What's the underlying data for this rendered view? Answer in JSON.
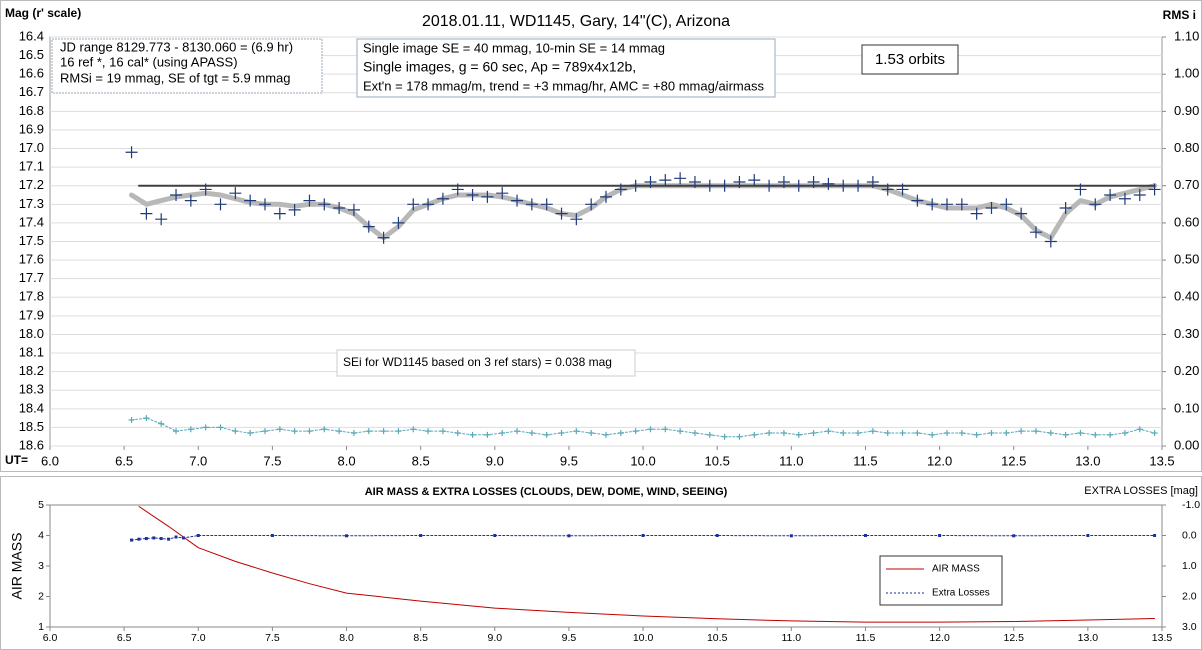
{
  "chart_data": [
    {
      "type": "scatter",
      "title": "2018.01.11,  WD1145, Gary, 14\"(C), Arizona",
      "ylabel": "Mag (r' scale)",
      "y2label": "RMS i",
      "xlabel": "UT=",
      "xlim": [
        6.0,
        13.5
      ],
      "xticks": [
        {
          "value": 6,
          "label": "6.0"
        },
        6.5,
        {
          "value": 7,
          "label": "7.0"
        },
        7.5,
        {
          "value": 8,
          "label": "8.0"
        },
        8.5,
        {
          "value": 9,
          "label": "9.0"
        },
        9.5,
        {
          "value": 10,
          "label": "10.0"
        },
        10.5,
        {
          "value": 11,
          "label": "11.0"
        },
        11.5,
        {
          "value": 12,
          "label": "12.0"
        },
        12.5,
        {
          "value": 13,
          "label": "13.0"
        },
        13.5
      ],
      "ylim": [
        18.6,
        16.4
      ],
      "yticks": [
        16.4,
        16.5,
        16.6,
        16.7,
        16.8,
        16.9,
        {
          "value": 17,
          "label": "17.0"
        },
        17.1,
        17.2,
        17.3,
        17.4,
        17.5,
        17.6,
        17.7,
        17.8,
        17.9,
        {
          "value": 18,
          "label": "18.0"
        },
        18.1,
        18.2,
        18.3,
        18.4,
        18.5,
        18.6
      ],
      "y2lim": [
        0,
        1.1
      ],
      "y2ticks": [
        {
          "value": 0,
          "label": "0.00"
        },
        {
          "value": 0.1,
          "label": "0.10"
        },
        {
          "value": 0.2,
          "label": "0.20"
        },
        {
          "value": 0.3,
          "label": "0.30"
        },
        {
          "value": 0.4,
          "label": "0.40"
        },
        {
          "value": 0.5,
          "label": "0.50"
        },
        {
          "value": 0.6,
          "label": "0.60"
        },
        {
          "value": 0.7,
          "label": "0.70"
        },
        {
          "value": 0.8,
          "label": "0.80"
        },
        {
          "value": 0.9,
          "label": "0.90"
        },
        {
          "value": 1,
          "label": "1.00"
        },
        {
          "value": 1.1,
          "label": "1.10"
        }
      ],
      "grid": true,
      "x": [
        6.55,
        6.65,
        6.75,
        6.85,
        6.95,
        7.05,
        7.15,
        7.25,
        7.35,
        7.45,
        7.55,
        7.65,
        7.75,
        7.85,
        7.95,
        8.05,
        8.15,
        8.25,
        8.35,
        8.45,
        8.55,
        8.65,
        8.75,
        8.85,
        8.95,
        9.05,
        9.15,
        9.25,
        9.35,
        9.45,
        9.55,
        9.65,
        9.75,
        9.85,
        9.95,
        10.05,
        10.15,
        10.25,
        10.35,
        10.45,
        10.55,
        10.65,
        10.75,
        10.85,
        10.95,
        11.05,
        11.15,
        11.25,
        11.35,
        11.45,
        11.55,
        11.65,
        11.75,
        11.85,
        11.95,
        12.05,
        12.15,
        12.25,
        12.35,
        12.45,
        12.55,
        12.65,
        12.75,
        12.85,
        12.95,
        13.05,
        13.15,
        13.25,
        13.35,
        13.45
      ],
      "series": [
        {
          "style": "line",
          "color": "#b8b8b8",
          "line_width": 5,
          "values": [
            17.25,
            17.3,
            17.28,
            17.26,
            17.25,
            17.24,
            17.25,
            17.27,
            17.29,
            17.3,
            17.3,
            17.31,
            17.3,
            17.3,
            17.32,
            17.35,
            17.42,
            17.48,
            17.42,
            17.33,
            17.3,
            17.27,
            17.25,
            17.25,
            17.25,
            17.26,
            17.28,
            17.3,
            17.32,
            17.35,
            17.36,
            17.32,
            17.26,
            17.22,
            17.2,
            17.2,
            17.2,
            17.2,
            17.2,
            17.2,
            17.2,
            17.2,
            17.2,
            17.2,
            17.2,
            17.2,
            17.2,
            17.2,
            17.2,
            17.2,
            17.2,
            17.22,
            17.25,
            17.28,
            17.3,
            17.32,
            17.32,
            17.32,
            17.3,
            17.32,
            17.36,
            17.44,
            17.48,
            17.35,
            17.28,
            17.3,
            17.26,
            17.24,
            17.22,
            17.2
          ]
        },
        {
          "style": "line",
          "color": "#404040",
          "line_width": 2,
          "x": [
            6.6,
            13.45
          ],
          "values": [
            17.2,
            17.2
          ]
        },
        {
          "style": "markers",
          "marker": "plus",
          "color": "#1f3a7a",
          "values": [
            17.02,
            17.35,
            17.38,
            17.25,
            17.28,
            17.22,
            17.3,
            17.24,
            17.28,
            17.3,
            17.35,
            17.33,
            17.28,
            17.3,
            17.32,
            17.33,
            17.42,
            17.48,
            17.4,
            17.3,
            17.3,
            17.27,
            17.22,
            17.25,
            17.26,
            17.24,
            17.28,
            17.3,
            17.3,
            17.35,
            17.38,
            17.3,
            17.26,
            17.22,
            17.2,
            17.18,
            17.17,
            17.16,
            17.18,
            17.2,
            17.2,
            17.18,
            17.17,
            17.2,
            17.18,
            17.2,
            17.18,
            17.19,
            17.2,
            17.2,
            17.18,
            17.22,
            17.22,
            17.28,
            17.3,
            17.3,
            17.3,
            17.35,
            17.32,
            17.3,
            17.35,
            17.45,
            17.5,
            17.32,
            17.22,
            17.3,
            17.25,
            17.27,
            17.25,
            17.22
          ]
        },
        {
          "style": "line-markers",
          "marker": "plus",
          "color": "#5aa9b8",
          "axis": "y2",
          "values": [
            0.07,
            0.075,
            0.06,
            0.04,
            0.045,
            0.05,
            0.05,
            0.04,
            0.035,
            0.04,
            0.045,
            0.04,
            0.04,
            0.045,
            0.04,
            0.035,
            0.04,
            0.04,
            0.04,
            0.045,
            0.04,
            0.04,
            0.035,
            0.03,
            0.03,
            0.035,
            0.04,
            0.035,
            0.03,
            0.035,
            0.04,
            0.035,
            0.03,
            0.035,
            0.04,
            0.045,
            0.045,
            0.04,
            0.035,
            0.03,
            0.025,
            0.025,
            0.03,
            0.035,
            0.035,
            0.03,
            0.035,
            0.04,
            0.035,
            0.035,
            0.04,
            0.035,
            0.035,
            0.035,
            0.03,
            0.035,
            0.035,
            0.03,
            0.035,
            0.035,
            0.04,
            0.04,
            0.035,
            0.03,
            0.035,
            0.03,
            0.03,
            0.035,
            0.045,
            0.035
          ]
        }
      ],
      "annotations": [
        {
          "lines": [
            "JD range  8129.773 - 8130.060  = (6.9 hr)",
            "16 ref *, 16 cal* (using APASS)",
            "RMSi = 19 mmag, SE of tgt = 5.9 mmag"
          ]
        },
        {
          "lines": [
            "Single image SE = 40 mmag, 10-min SE = 14 mmag",
            "Single images, g = 60 sec, Ap = 789x4x12b,",
            "Ext'n = 178 mmag/m, trend = +3 mmag/hr, AMC = +80 mmag/airmass"
          ]
        },
        {
          "lines": [
            "1.53 orbits"
          ]
        },
        {
          "lines": [
            "SEi for WD1145 based on 3 ref stars) = 0.038 mag"
          ]
        }
      ]
    },
    {
      "type": "line",
      "title": "AIR MASS & EXTRA LOSSES (CLOUDS, DEW, DOME, WIND, SEEING)",
      "ylabel": "AIR MASS",
      "y2label": "EXTRA LOSSES [mag]",
      "xlim": [
        6.0,
        13.5
      ],
      "xticks": [
        {
          "value": 6,
          "label": "6.0"
        },
        6.5,
        {
          "value": 7,
          "label": "7.0"
        },
        7.5,
        {
          "value": 8,
          "label": "8.0"
        },
        8.5,
        {
          "value": 9,
          "label": "9.0"
        },
        9.5,
        {
          "value": 10,
          "label": "10.0"
        },
        10.5,
        {
          "value": 11,
          "label": "11.0"
        },
        11.5,
        {
          "value": 12,
          "label": "12.0"
        },
        12.5,
        {
          "value": 13,
          "label": "13.0"
        },
        13.5
      ],
      "ylim": [
        1,
        5
      ],
      "yticks": [
        1,
        2,
        3,
        4,
        5
      ],
      "y2lim": [
        3,
        -1
      ],
      "y2ticks": [
        {
          "value": -1,
          "label": "-1.0"
        },
        {
          "value": 0,
          "label": "0.0"
        },
        {
          "value": 1,
          "label": "1.0"
        },
        {
          "value": 2,
          "label": "2.0"
        },
        {
          "value": 3,
          "label": "3.0"
        }
      ],
      "grid": false,
      "legend": "lower-right",
      "series": [
        {
          "name": "AIR MASS",
          "style": "line",
          "color": "#c00000",
          "line_width": 1,
          "x": [
            6.6,
            6.8,
            7.0,
            7.25,
            7.5,
            7.75,
            8.0,
            8.5,
            9.0,
            9.5,
            10.0,
            10.5,
            11.0,
            11.5,
            12.0,
            12.5,
            13.0,
            13.45
          ],
          "values": [
            4.95,
            4.3,
            3.6,
            3.15,
            2.77,
            2.42,
            2.11,
            1.85,
            1.62,
            1.48,
            1.36,
            1.27,
            1.2,
            1.16,
            1.16,
            1.18,
            1.23,
            1.28
          ]
        },
        {
          "name": "Extra Losses",
          "style": "line-markers",
          "marker": "square",
          "color": "#1a2f9a",
          "axis": "y2",
          "x": [
            6.55,
            6.6,
            6.65,
            6.7,
            6.75,
            6.8,
            6.85,
            6.9,
            7.0,
            7.5,
            8.0,
            8.5,
            9.0,
            9.5,
            10.0,
            10.5,
            11.0,
            11.5,
            12.0,
            12.5,
            13.0,
            13.45
          ],
          "values": [
            0.15,
            0.12,
            0.1,
            0.08,
            0.1,
            0.12,
            0.05,
            0.08,
            0.0,
            0.0,
            0.01,
            0.0,
            0.0,
            0.01,
            0.0,
            0.0,
            0.01,
            0.0,
            0.0,
            0.01,
            0.0,
            0.0
          ]
        }
      ]
    }
  ]
}
